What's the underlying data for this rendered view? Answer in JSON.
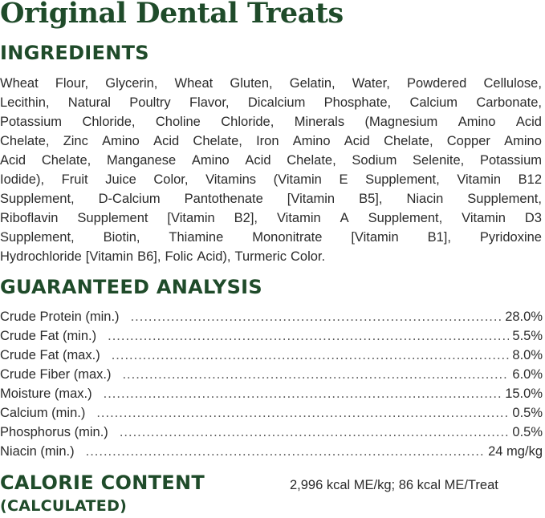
{
  "title": "Original Dental Treats",
  "ingredients": {
    "heading": "INGREDIENTS",
    "lines": [
      "Wheat Flour, Glycerin, Wheat Gluten, Gelatin, Water, Powdered Cellulose,",
      "Lecithin, Natural Poultry Flavor, Dicalcium Phosphate, Calcium Carbonate,",
      "Potassium Chloride, Choline Chloride, Minerals (Magnesium Amino Acid",
      "Chelate, Zinc Amino Acid Chelate, Iron Amino Acid Chelate, Copper Amino",
      "Acid Chelate, Manganese Amino Acid Chelate, Sodium Selenite, Potassium",
      "Iodide), Fruit Juice Color, Vitamins (Vitamin E Supplement, Vitamin B12",
      "Supplement, D-Calcium Pantothenate [Vitamin B5], Niacin Supplement,",
      "Riboflavin Supplement [Vitamin B2], Vitamin A Supplement, Vitamin D3",
      "Supplement, Biotin, Thiamine Mononitrate [Vitamin B1], Pyridoxine",
      "Hydrochloride [Vitamin B6], Folic Acid), Turmeric Color."
    ]
  },
  "analysis": {
    "heading": "GUARANTEED ANALYSIS",
    "rows": [
      {
        "label": "Crude Protein (min.)",
        "value": "28.0%"
      },
      {
        "label": "Crude Fat (min.)",
        "value": "5.5%"
      },
      {
        "label": "Crude Fat (max.)",
        "value": "8.0%"
      },
      {
        "label": "Crude Fiber (max.)",
        "value": "6.0%"
      },
      {
        "label": "Moisture (max.)",
        "value": "15.0%"
      },
      {
        "label": "Calcium (min.)",
        "value": "0.5%"
      },
      {
        "label": "Phosphorus (min.)",
        "value": "0.5%"
      },
      {
        "label": "Niacin (min.)",
        "value": "24 mg/kg"
      }
    ]
  },
  "calorie": {
    "heading": "CALORIE CONTENT",
    "subheading": "(CALCULATED)",
    "value": "2,996 kcal ME/kg; 86 kcal ME/Treat"
  },
  "colors": {
    "heading_green": "#1f4b2a",
    "body_text": "#2b2b2b"
  }
}
